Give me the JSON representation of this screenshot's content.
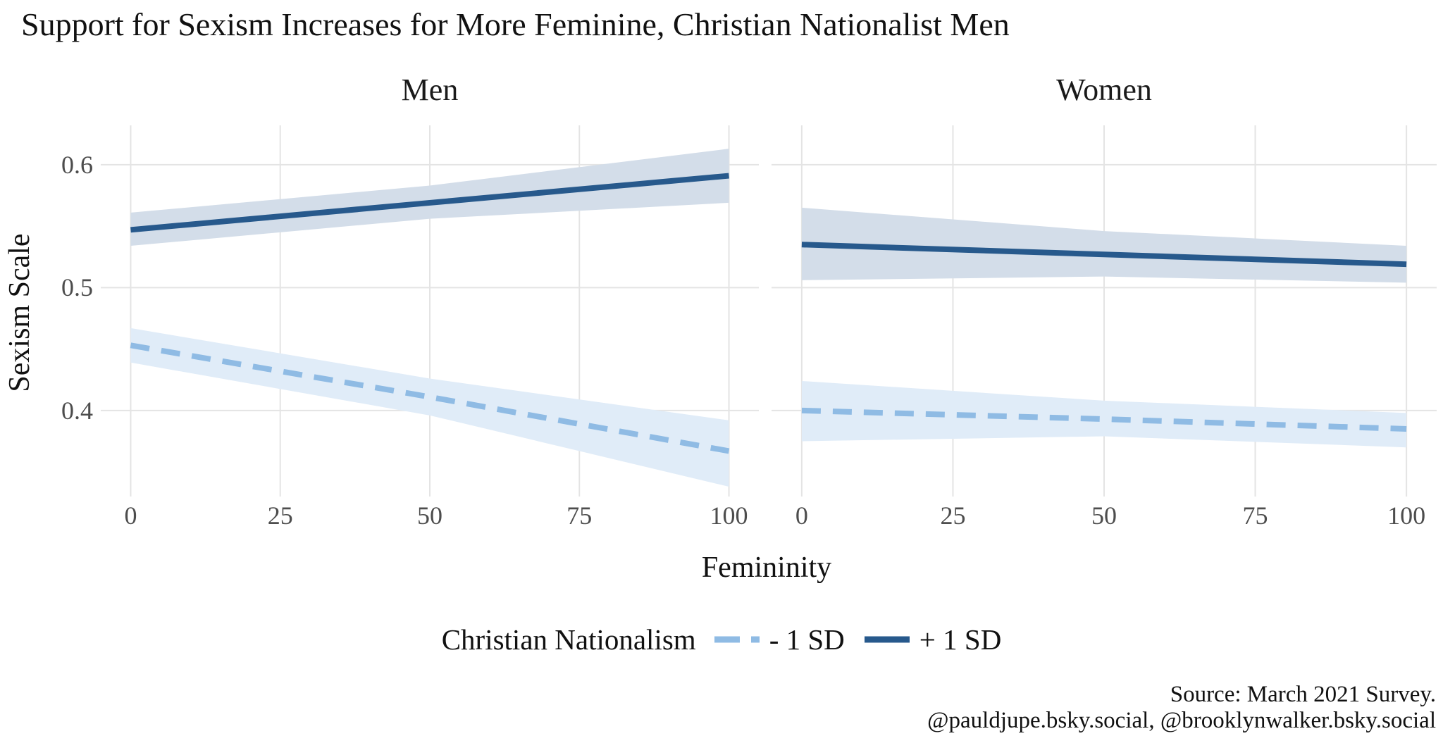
{
  "title": "Support for Sexism Increases for More Feminine, Christian Nationalist Men",
  "chart_data": {
    "type": "line",
    "xlabel": "Femininity",
    "ylabel": "Sexism Scale",
    "x_ticks": [
      0,
      25,
      50,
      75,
      100
    ],
    "x_tick_labels": [
      "0",
      "25",
      "50",
      "75",
      "100"
    ],
    "y_ticks": [
      0.4,
      0.5,
      0.6
    ],
    "y_tick_labels": [
      "0.4",
      "0.5",
      "0.6"
    ],
    "xlim": [
      -5,
      105
    ],
    "ylim": [
      0.33,
      0.632
    ],
    "grid": "major-only",
    "legend_position": "bottom",
    "facets": [
      {
        "label": "Men",
        "series": [
          {
            "name": "+ 1 SD",
            "style": "solid",
            "color": "#27598c",
            "ribbon_color": "#d3dde9",
            "x": [
              0,
              50,
              100
            ],
            "y": [
              0.547,
              0.569,
              0.591
            ],
            "ribbon_upper": [
              0.561,
              0.583,
              0.613
            ],
            "ribbon_lower": [
              0.534,
              0.556,
              0.569
            ]
          },
          {
            "name": "- 1 SD",
            "style": "dashed",
            "color": "#8fbbe4",
            "ribbon_color": "#e0ecf8",
            "x": [
              0,
              50,
              100
            ],
            "y": [
              0.453,
              0.411,
              0.367
            ],
            "ribbon_upper": [
              0.467,
              0.426,
              0.392
            ],
            "ribbon_lower": [
              0.439,
              0.396,
              0.338
            ]
          }
        ]
      },
      {
        "label": "Women",
        "series": [
          {
            "name": "+ 1 SD",
            "style": "solid",
            "color": "#27598c",
            "ribbon_color": "#d3dde9",
            "x": [
              0,
              50,
              100
            ],
            "y": [
              0.535,
              0.527,
              0.519
            ],
            "ribbon_upper": [
              0.565,
              0.546,
              0.534
            ],
            "ribbon_lower": [
              0.506,
              0.509,
              0.504
            ]
          },
          {
            "name": "- 1 SD",
            "style": "dashed",
            "color": "#8fbbe4",
            "ribbon_color": "#e0ecf8",
            "x": [
              0,
              50,
              100
            ],
            "y": [
              0.4,
              0.393,
              0.385
            ],
            "ribbon_upper": [
              0.424,
              0.408,
              0.398
            ],
            "ribbon_lower": [
              0.375,
              0.379,
              0.37
            ]
          }
        ]
      }
    ]
  },
  "legend": {
    "title": "Christian Nationalism",
    "items": [
      {
        "label": "- 1 SD",
        "style": "dashed",
        "color": "#8fbbe4"
      },
      {
        "label": "+ 1 SD",
        "style": "solid",
        "color": "#27598c"
      }
    ]
  },
  "footer": {
    "line1": "Source: March 2021 Survey.",
    "line2": "@pauldjupe.bsky.social, @brooklynwalker.bsky.social"
  },
  "colors": {
    "dark_line": "#27598c",
    "light_line": "#8fbbe4",
    "dark_ribbon": "#d3dde9",
    "light_ribbon": "#e0ecf8",
    "gridline": "#e4e4e4",
    "tick_text": "#4d4d4d",
    "text": "#111111",
    "background": "#ffffff"
  }
}
